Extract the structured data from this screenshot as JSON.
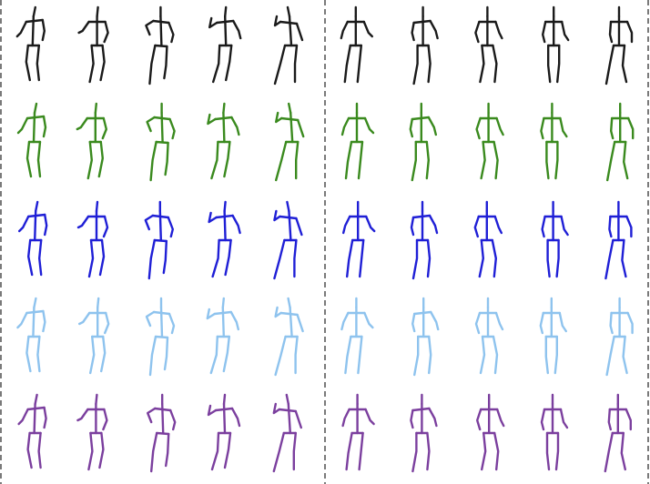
{
  "figure": {
    "panels": [
      "left",
      "right"
    ],
    "row_colors": [
      {
        "row": 1,
        "color": "#1a1a1a"
      },
      {
        "row": 2,
        "color": "#3a8a1e"
      },
      {
        "row": 3,
        "color": "#1f1fd6"
      },
      {
        "row": 4,
        "color": "#8ec3ee"
      },
      {
        "row": 5,
        "color": "#7b3f9e"
      }
    ],
    "frames_per_row_per_panel": 5,
    "separator_style": "dashed"
  }
}
